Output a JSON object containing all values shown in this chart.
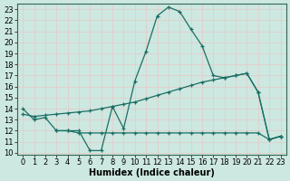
{
  "xlabel": "Humidex (Indice chaleur)",
  "bg_color": "#cce8e0",
  "grid_color": "#b0d8d0",
  "line_color": "#1a6e64",
  "xlim": [
    -0.5,
    23.5
  ],
  "ylim": [
    9.8,
    23.5
  ],
  "yticks": [
    10,
    11,
    12,
    13,
    14,
    15,
    16,
    17,
    18,
    19,
    20,
    21,
    22,
    23
  ],
  "xticks": [
    0,
    1,
    2,
    3,
    4,
    5,
    6,
    7,
    8,
    9,
    10,
    11,
    12,
    13,
    14,
    15,
    16,
    17,
    18,
    19,
    20,
    21,
    22,
    23
  ],
  "curve1_x": [
    0,
    1,
    2,
    3,
    4,
    5,
    6,
    7,
    8,
    9,
    10,
    11,
    12,
    13,
    14,
    15,
    16,
    17,
    18,
    19,
    20,
    21,
    22,
    23
  ],
  "curve1_y": [
    14.0,
    13.0,
    13.2,
    12.0,
    12.0,
    12.0,
    10.2,
    10.2,
    14.2,
    12.2,
    16.5,
    19.2,
    22.4,
    23.2,
    22.8,
    21.2,
    19.7,
    17.0,
    16.8,
    17.0,
    17.2,
    15.5,
    11.2,
    11.5
  ],
  "curve2_x": [
    3,
    4,
    5,
    6,
    7,
    8,
    9,
    10,
    11,
    12,
    13,
    14,
    15,
    16,
    17,
    18,
    19,
    20,
    21,
    22,
    23
  ],
  "curve2_y": [
    12.0,
    12.0,
    11.8,
    11.8,
    11.8,
    11.8,
    11.8,
    11.8,
    11.8,
    11.8,
    11.8,
    11.8,
    11.8,
    11.8,
    11.8,
    11.8,
    11.8,
    11.8,
    11.8,
    11.2,
    11.5
  ],
  "curve3_x": [
    0,
    1,
    2,
    3,
    4,
    5,
    6,
    7,
    8,
    9,
    10,
    11,
    12,
    13,
    14,
    15,
    16,
    17,
    18,
    19,
    20,
    21,
    22,
    23
  ],
  "curve3_y": [
    13.5,
    13.3,
    13.4,
    13.5,
    13.6,
    13.7,
    13.8,
    14.0,
    14.2,
    14.4,
    14.6,
    14.9,
    15.2,
    15.5,
    15.8,
    16.1,
    16.4,
    16.6,
    16.8,
    17.0,
    17.2,
    15.5,
    11.2,
    11.5
  ],
  "marker": "+",
  "linewidth": 0.9,
  "markersize": 3,
  "fontsize_label": 7,
  "fontsize_tick": 6
}
